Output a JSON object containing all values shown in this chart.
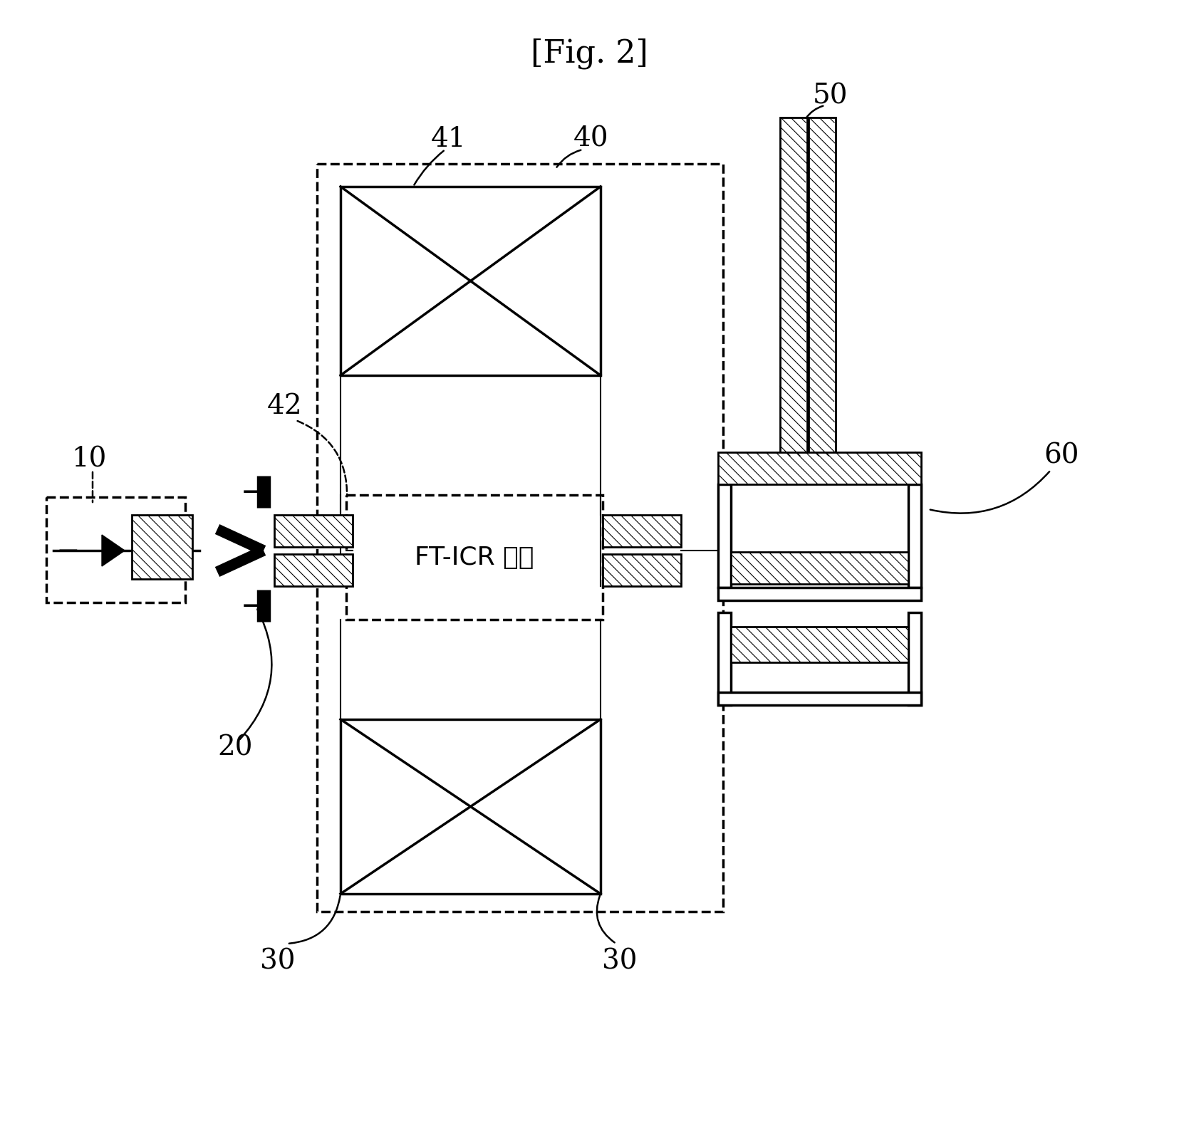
{
  "title": "[Fig. 2]",
  "bg": "#ffffff",
  "lc": "#000000",
  "fig_w": 16.55,
  "fig_h": 15.74,
  "trap_text": "FT-ICR 트랙"
}
